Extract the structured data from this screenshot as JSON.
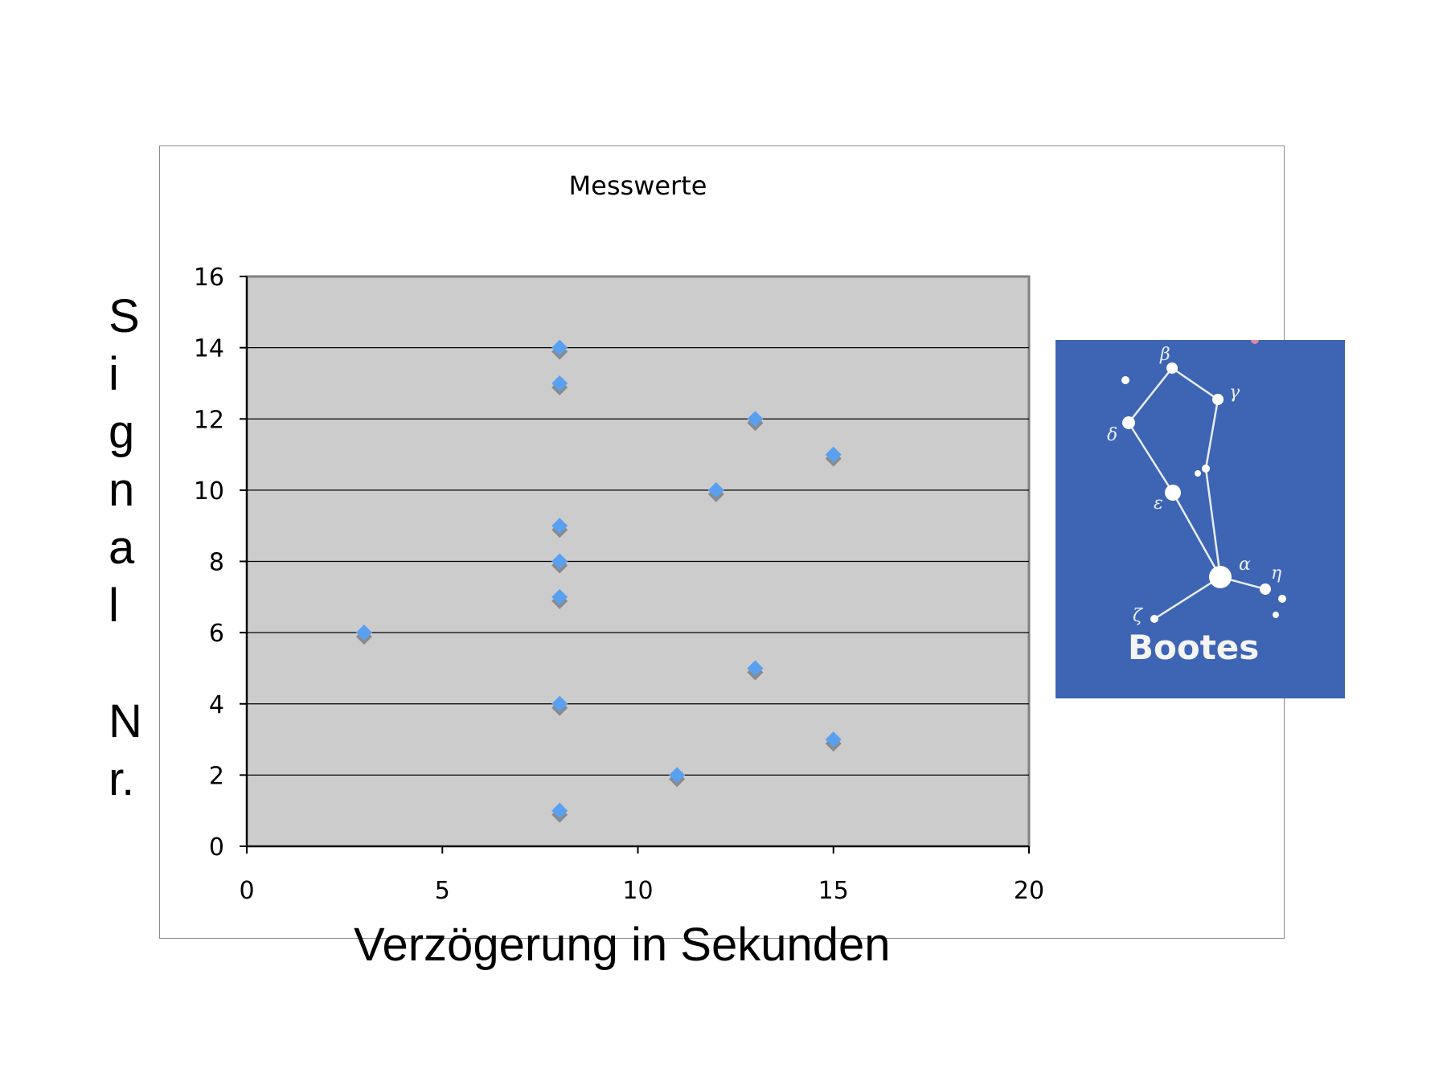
{
  "chart_data": {
    "type": "scatter",
    "title": "Messwerte",
    "xlabel": "Verzögerung in Sekunden",
    "ylabel": "Signal Nr.",
    "xlim": [
      0,
      20
    ],
    "ylim": [
      0,
      16
    ],
    "xticks": [
      0,
      5,
      10,
      15,
      20
    ],
    "yticks": [
      0,
      2,
      4,
      6,
      8,
      10,
      12,
      14,
      16
    ],
    "grid": "horizontal",
    "marker": "diamond",
    "colors": {
      "marker": "#5aa0f0",
      "shadow": "#8a8a8a",
      "plot_bg": "#cccccc",
      "grid": "#000000"
    },
    "points": [
      {
        "x": 8,
        "y": 1
      },
      {
        "x": 11,
        "y": 2
      },
      {
        "x": 15,
        "y": 3
      },
      {
        "x": 8,
        "y": 4
      },
      {
        "x": 13,
        "y": 5
      },
      {
        "x": 3,
        "y": 6
      },
      {
        "x": 8,
        "y": 7
      },
      {
        "x": 8,
        "y": 8
      },
      {
        "x": 8,
        "y": 9
      },
      {
        "x": 12,
        "y": 10
      },
      {
        "x": 15,
        "y": 11
      },
      {
        "x": 13,
        "y": 12
      },
      {
        "x": 8,
        "y": 13
      },
      {
        "x": 8,
        "y": 14
      }
    ]
  },
  "ylabel_chars": [
    "S",
    "i",
    "g",
    "n",
    "a",
    "l",
    "",
    "N",
    "r."
  ],
  "constellation": {
    "label": "Bootes",
    "background": "#3e64b4",
    "star_labels": [
      "β",
      "γ",
      "δ",
      "ε",
      "α",
      "η",
      "ζ"
    ]
  }
}
